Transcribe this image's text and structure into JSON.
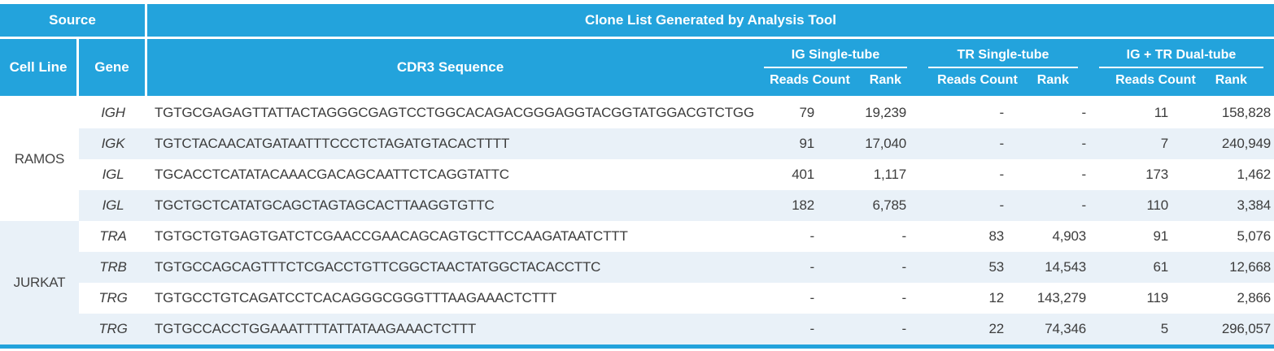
{
  "colors": {
    "accent": "#23a3dc",
    "stripe": "#e9f1f8"
  },
  "header": {
    "source_label": "Source",
    "title": "Clone List Generated by Analysis Tool",
    "cell_line_label": "Cell Line",
    "gene_label": "Gene",
    "cdr3_label": "CDR3 Sequence",
    "groups": [
      {
        "label": "IG Single-tube",
        "reads_label": "Reads Count",
        "rank_label": "Rank"
      },
      {
        "label": "TR Single-tube",
        "reads_label": "Reads Count",
        "rank_label": "Rank"
      },
      {
        "label": "IG + TR Dual-tube",
        "reads_label": "Reads Count",
        "rank_label": "Rank"
      }
    ]
  },
  "body": {
    "groups": [
      {
        "cell_line": "RAMOS",
        "rows": [
          {
            "gene": "IGH",
            "sequence": "TGTGCGAGAGTTATTACTAGGGCGAGTCCTGGCACAGACGGGAGGTACGGTATGGACGTCTGG",
            "ig_reads": "79",
            "ig_rank": "19,239",
            "tr_reads": "-",
            "tr_rank": "-",
            "dual_reads": "11",
            "dual_rank": "158,828"
          },
          {
            "gene": "IGK",
            "sequence": "TGTCTACAACATGATAATTTCCCTCTAGATGTACACTTTT",
            "ig_reads": "91",
            "ig_rank": "17,040",
            "tr_reads": "-",
            "tr_rank": "-",
            "dual_reads": "7",
            "dual_rank": "240,949"
          },
          {
            "gene": "IGL",
            "sequence": "TGCACCTCATATACAAACGACAGCAATTCTCAGGTATTC",
            "ig_reads": "401",
            "ig_rank": "1,117",
            "tr_reads": "-",
            "tr_rank": "-",
            "dual_reads": "173",
            "dual_rank": "1,462"
          },
          {
            "gene": "IGL",
            "sequence": "TGCTGCTCATATGCAGCTAGTAGCACTTAAGGTGTTC",
            "ig_reads": "182",
            "ig_rank": "6,785",
            "tr_reads": "-",
            "tr_rank": "-",
            "dual_reads": "110",
            "dual_rank": "3,384"
          }
        ]
      },
      {
        "cell_line": "JURKAT",
        "rows": [
          {
            "gene": "TRA",
            "sequence": "TGTGCTGTGAGTGATCTCGAACCGAACAGCAGTGCTTCCAAGATAATCTTT",
            "ig_reads": "-",
            "ig_rank": "-",
            "tr_reads": "83",
            "tr_rank": "4,903",
            "dual_reads": "91",
            "dual_rank": "5,076"
          },
          {
            "gene": "TRB",
            "sequence": "TGTGCCAGCAGTTTCTCGACCTGTTCGGCTAACTATGGCTACACCTTC",
            "ig_reads": "-",
            "ig_rank": "-",
            "tr_reads": "53",
            "tr_rank": "14,543",
            "dual_reads": "61",
            "dual_rank": "12,668"
          },
          {
            "gene": "TRG",
            "sequence": "TGTGCCTGTCAGATCCTCACAGGGCGGGTTTAAGAAACTCTTT",
            "ig_reads": "-",
            "ig_rank": "-",
            "tr_reads": "12",
            "tr_rank": "143,279",
            "dual_reads": "119",
            "dual_rank": "2,866"
          },
          {
            "gene": "TRG",
            "sequence": "TGTGCCACCTGGAAATTTTATTATAAGAAACTCTTT",
            "ig_reads": "-",
            "ig_rank": "-",
            "tr_reads": "22",
            "tr_rank": "74,346",
            "dual_reads": "5",
            "dual_rank": "296,057"
          }
        ]
      }
    ]
  }
}
